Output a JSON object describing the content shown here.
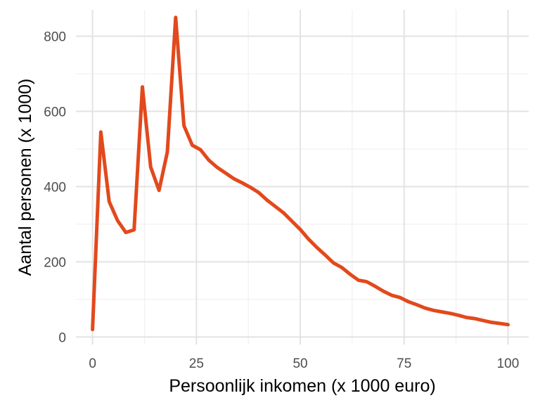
{
  "chart_data": {
    "type": "line",
    "title": "",
    "xlabel": "Persoonlijk inkomen (x 1000 euro)",
    "ylabel": "Aantal personen (x 1000)",
    "xlim": [
      -4,
      105
    ],
    "ylim": [
      -20,
      870
    ],
    "x_ticks": [
      0,
      25,
      50,
      75,
      100
    ],
    "y_ticks": [
      0,
      200,
      400,
      600,
      800
    ],
    "x_minor": [
      12.5,
      37.5,
      62.5,
      87.5
    ],
    "y_minor": [
      100,
      300,
      500,
      700
    ],
    "grid": true,
    "line_color": "#e2491c",
    "series": [
      {
        "x": [
          0,
          2,
          4,
          6,
          8,
          10,
          12,
          14,
          16,
          18,
          20,
          22,
          24,
          26,
          28,
          30,
          32,
          34,
          36,
          38,
          40,
          42,
          44,
          46,
          48,
          50,
          52,
          54,
          56,
          58,
          60,
          62,
          64,
          66,
          68,
          70,
          72,
          74,
          76,
          78,
          80,
          82,
          84,
          86,
          88,
          90,
          92,
          94,
          96,
          98,
          100
        ],
        "y": [
          20,
          545,
          360,
          310,
          278,
          285,
          665,
          452,
          390,
          492,
          850,
          562,
          510,
          498,
          470,
          451,
          436,
          421,
          410,
          398,
          384,
          364,
          347,
          330,
          308,
          286,
          260,
          238,
          218,
          197,
          185,
          167,
          151,
          147,
          135,
          122,
          111,
          105,
          94,
          86,
          77,
          71,
          67,
          63,
          58,
          52,
          49,
          44,
          39,
          36,
          33
        ]
      }
    ]
  }
}
